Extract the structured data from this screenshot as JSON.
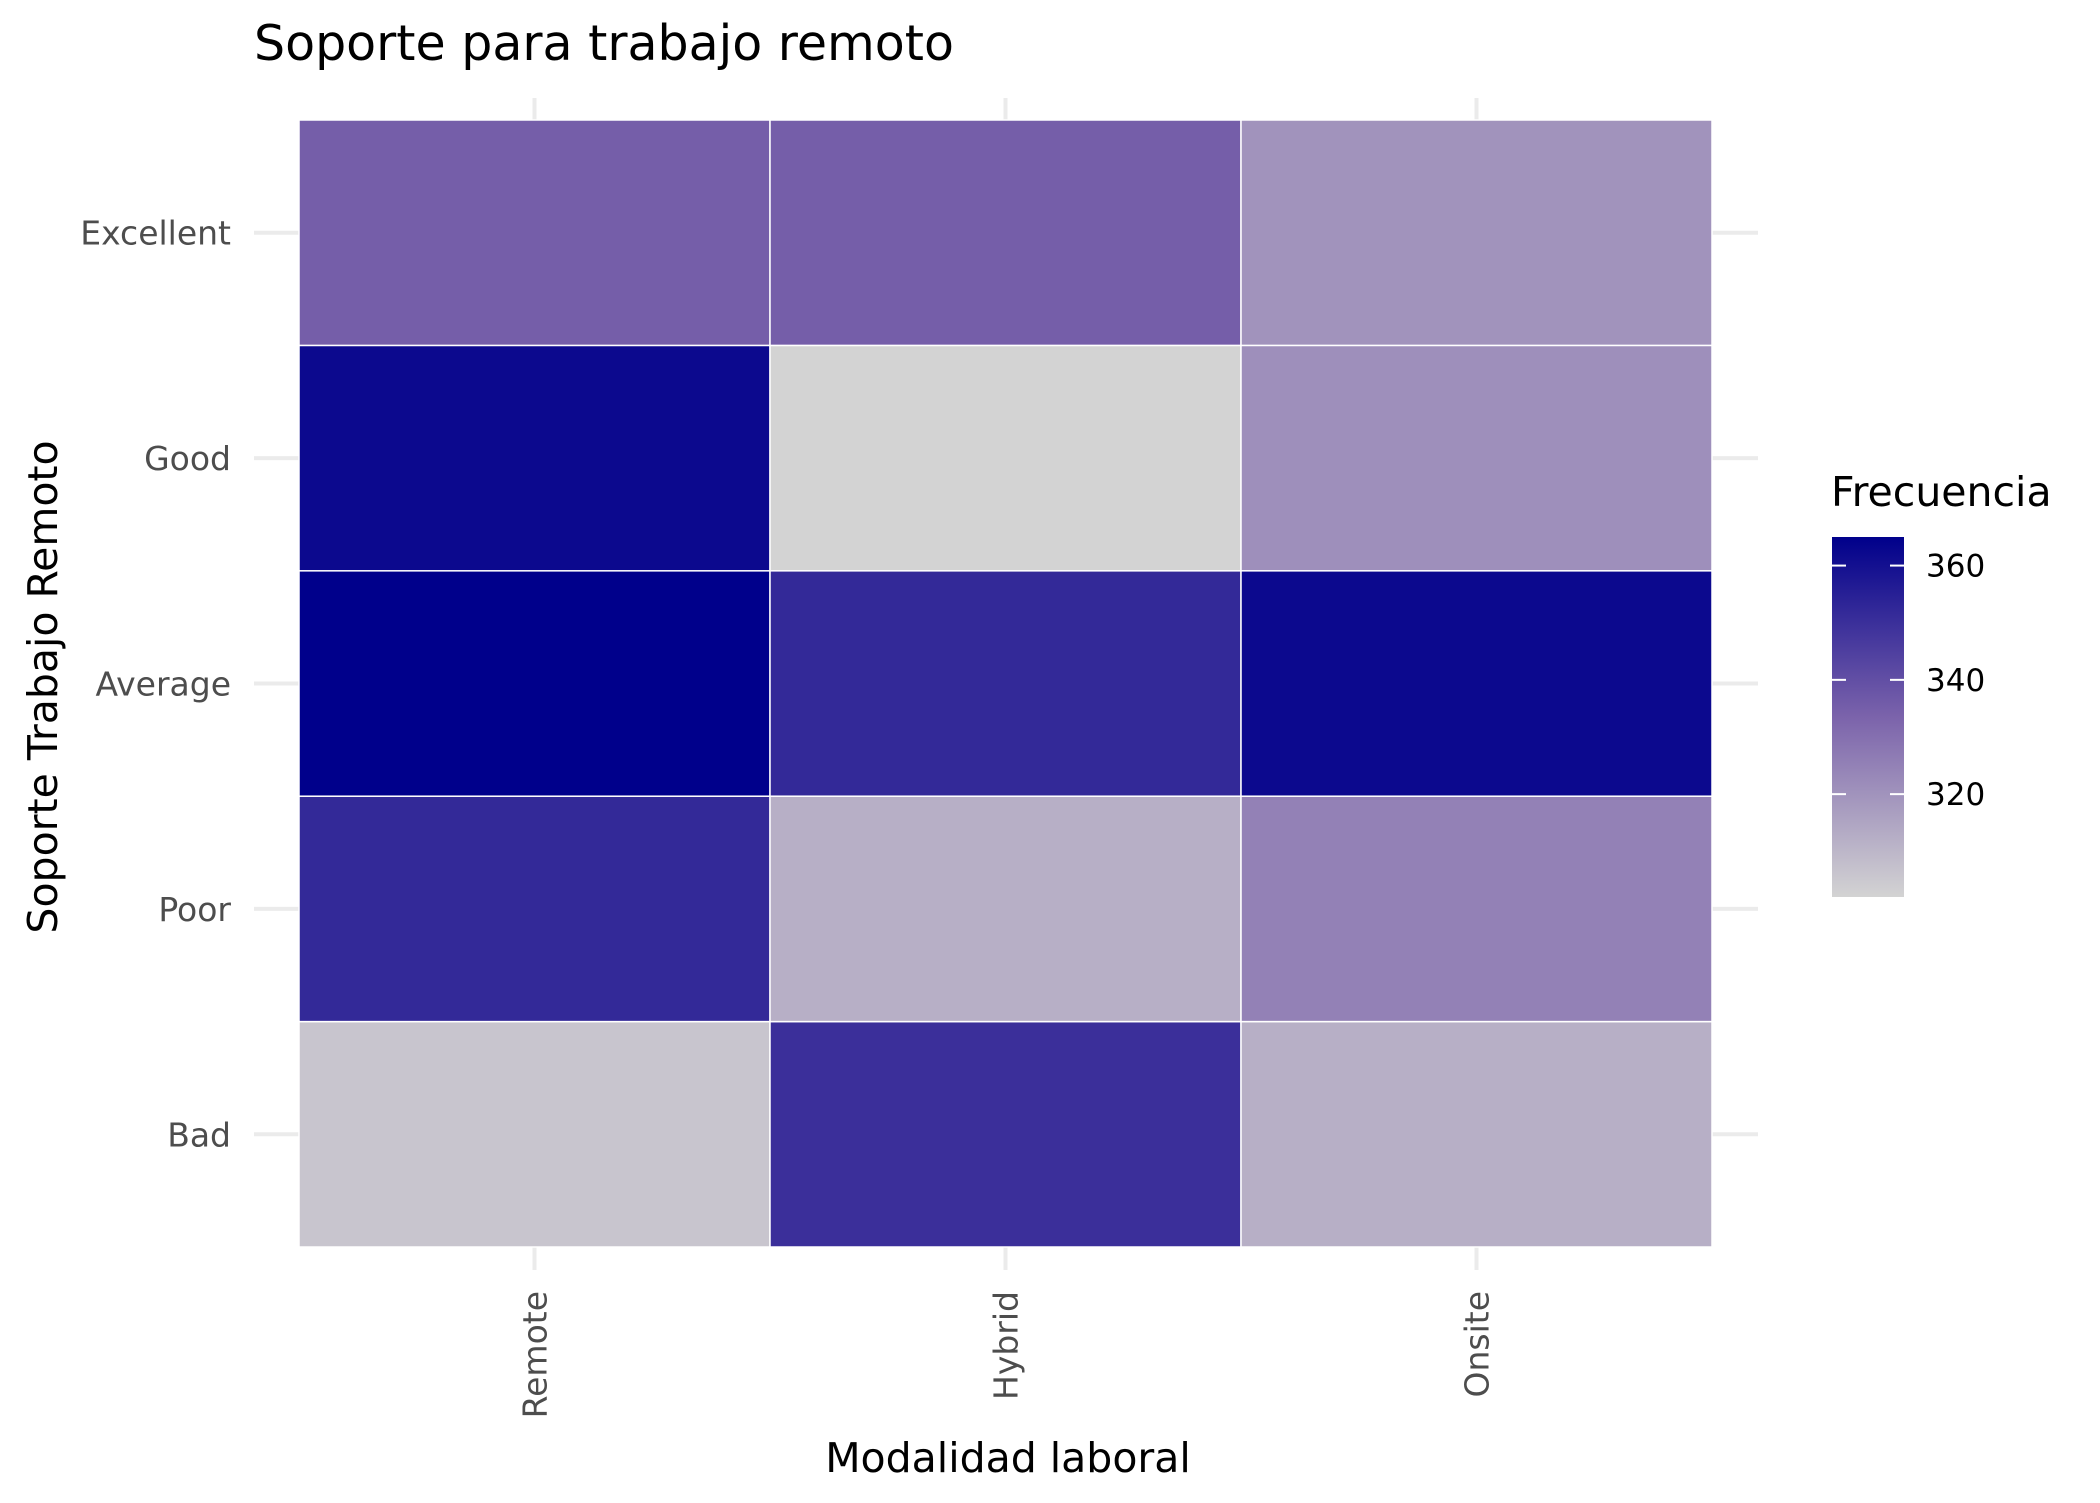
{
  "chart_data": {
    "type": "heatmap",
    "title": "Soporte para trabajo remoto",
    "xlabel": "Modalidad laboral",
    "ylabel": "Soporte Trabajo Remoto",
    "x_categories": [
      "Remote",
      "Hybrid",
      "Onsite"
    ],
    "y_categories": [
      "Bad",
      "Poor",
      "Average",
      "Good",
      "Excellent"
    ],
    "values": [
      [
        306,
        350,
        312
      ],
      [
        352,
        312,
        325
      ],
      [
        365,
        352,
        362
      ],
      [
        362,
        302,
        321
      ],
      [
        335,
        335,
        320
      ]
    ],
    "legend": {
      "title": "Frecuencia",
      "position": "right",
      "ticks": [
        320,
        340,
        360
      ],
      "min": 302,
      "max": 365,
      "low_color": "#d3d3d3",
      "mid_color": "#7b63ab",
      "high_color": "#00008b"
    },
    "grid": true
  }
}
